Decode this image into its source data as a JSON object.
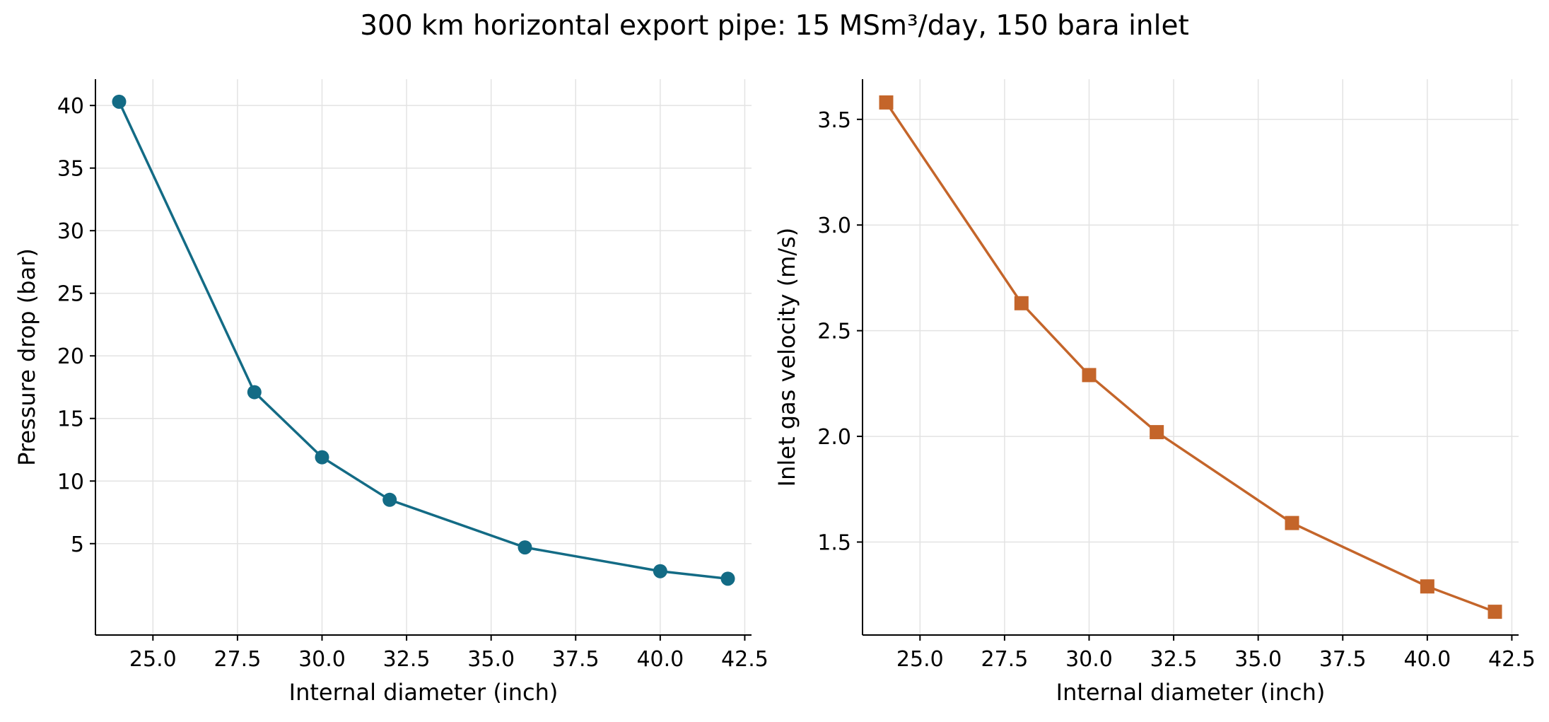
{
  "figure": {
    "title": "300 km horizontal export pipe: 15 MSm³/day, 150 bara inlet"
  },
  "chart_data": [
    {
      "type": "line",
      "title": "",
      "xlabel": "Internal diameter (inch)",
      "ylabel": "Pressure drop (bar)",
      "x": [
        24,
        28,
        30,
        32,
        36,
        40,
        42
      ],
      "series": [
        {
          "values": [
            40.3,
            17.1,
            11.9,
            8.5,
            4.7,
            2.8,
            2.2
          ]
        }
      ],
      "xlim": [
        23.3,
        42.7
      ],
      "ylim": [
        -2.3,
        42.1
      ],
      "xticks": [
        "25.0",
        "27.5",
        "30.0",
        "32.5",
        "35.0",
        "37.5",
        "40.0",
        "42.5"
      ],
      "yticks": [
        "5",
        "10",
        "15",
        "20",
        "25",
        "30",
        "35",
        "40"
      ],
      "marker": "circle",
      "color": "#136b85",
      "grid": true,
      "legend": "none"
    },
    {
      "type": "line",
      "title": "",
      "xlabel": "Internal diameter (inch)",
      "ylabel": "Inlet gas velocity (m/s)",
      "x": [
        24,
        28,
        30,
        32,
        36,
        40,
        42
      ],
      "series": [
        {
          "values": [
            3.58,
            2.63,
            2.29,
            2.02,
            1.59,
            1.29,
            1.17
          ]
        }
      ],
      "xlim": [
        23.3,
        42.7
      ],
      "ylim": [
        1.06,
        3.69
      ],
      "xticks": [
        "25.0",
        "27.5",
        "30.0",
        "32.5",
        "35.0",
        "37.5",
        "40.0",
        "42.5"
      ],
      "yticks": [
        "1.5",
        "2.0",
        "2.5",
        "3.0",
        "3.5"
      ],
      "marker": "square",
      "color": "#c4652a",
      "grid": true,
      "legend": "none"
    }
  ]
}
